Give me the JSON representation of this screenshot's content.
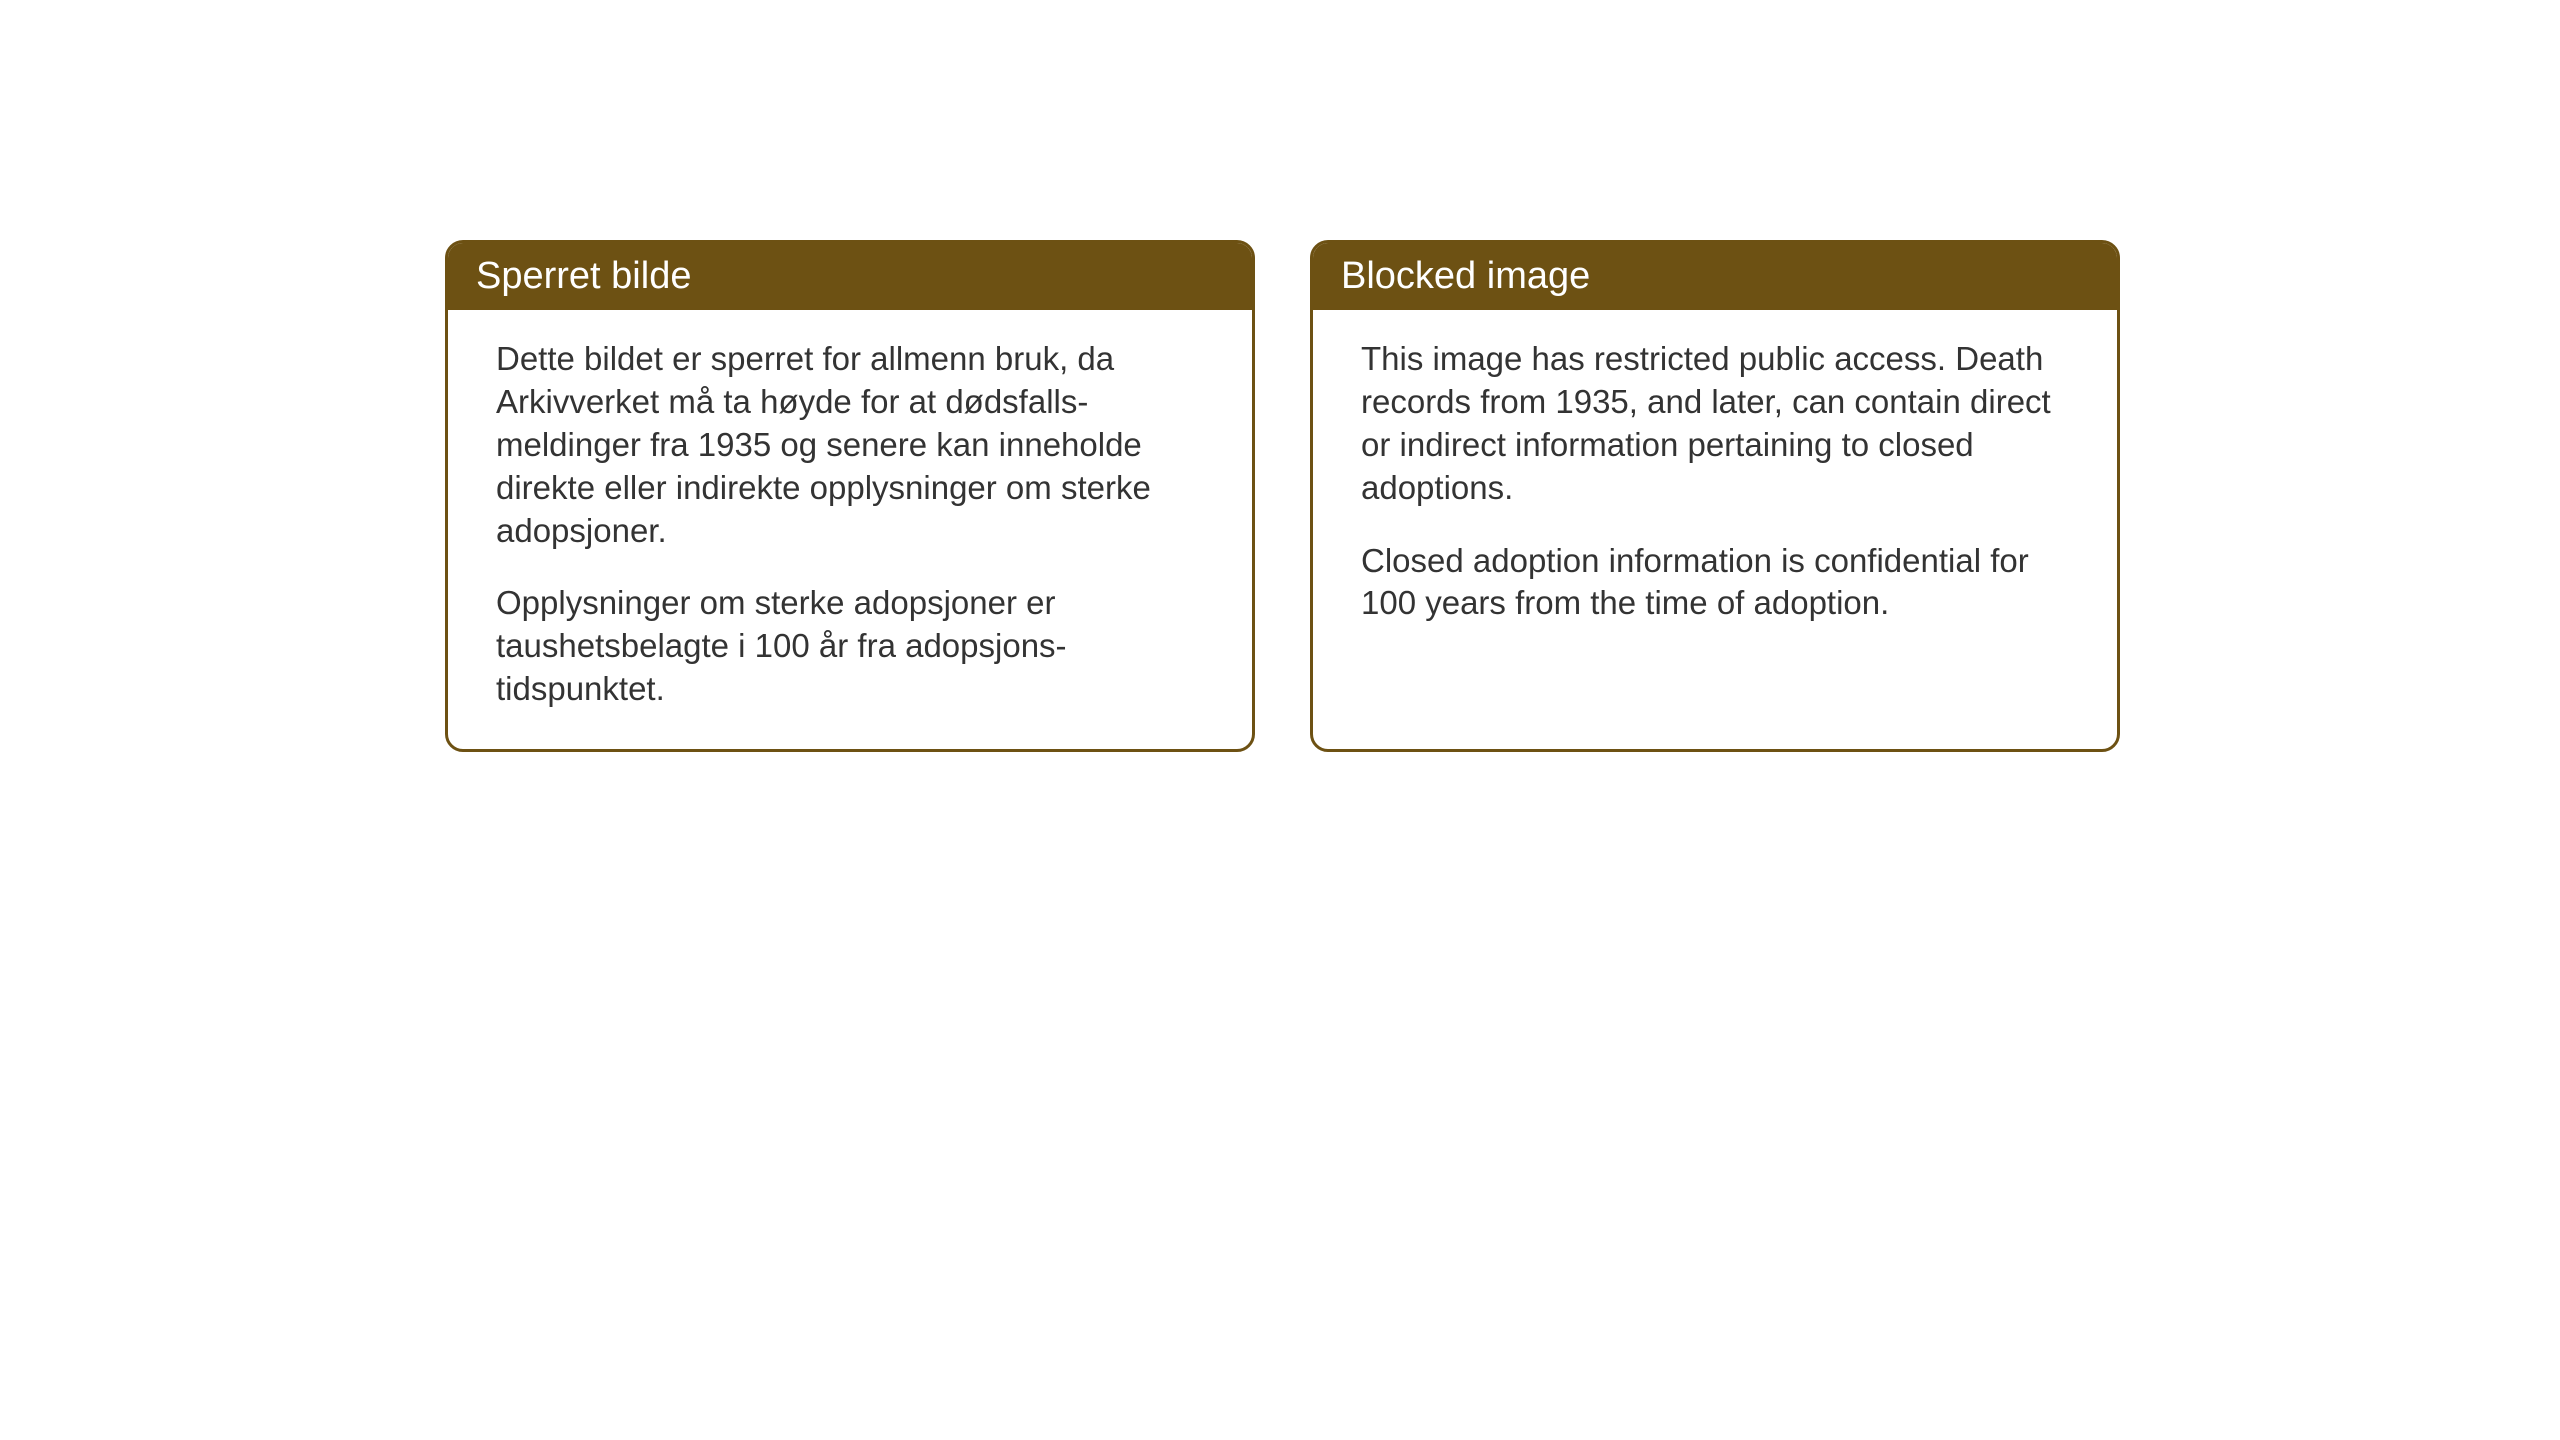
{
  "cards": {
    "norwegian": {
      "title": "Sperret bilde",
      "paragraph1": "Dette bildet er sperret for allmenn bruk, da Arkivverket må ta høyde for at dødsfalls-meldinger fra 1935 og senere kan inneholde direkte eller indirekte opplysninger om sterke adopsjoner.",
      "paragraph2": "Opplysninger om sterke adopsjoner er taushetsbelagte i 100 år fra adopsjons-tidspunktet."
    },
    "english": {
      "title": "Blocked image",
      "paragraph1": "This image has restricted public access. Death records from 1935, and later, can contain direct or indirect information pertaining to closed adoptions.",
      "paragraph2": "Closed adoption information is confidential for 100 years from the time of adoption."
    }
  },
  "styling": {
    "header_background": "#6d5113",
    "header_text_color": "#ffffff",
    "border_color": "#6d5113",
    "body_text_color": "#333333",
    "page_background": "#ffffff",
    "title_fontsize": 38,
    "body_fontsize": 33,
    "border_radius": 18,
    "border_width": 3
  }
}
